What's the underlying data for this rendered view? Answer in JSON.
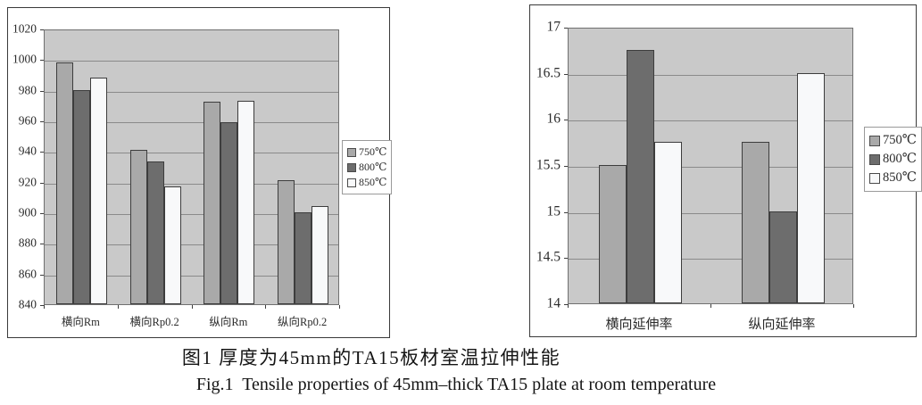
{
  "figure": {
    "caption_zh": "图1 厚度为45mm的TA15板材室温拉伸性能",
    "caption_en": "Fig.1  Tensile properties of 45mm–thick TA15 plate at room temperature"
  },
  "colors": {
    "series_750": "#a9a9a9",
    "series_800": "#6d6d6d",
    "series_850": "#f8f9fa",
    "plot_bg": "#c9c9c9",
    "gridline": "#8a8a8a",
    "bar_border": "#3d3d3d",
    "frame_border": "#3a3a3a"
  },
  "chart_data": [
    {
      "type": "bar",
      "title": "",
      "xlabel": "",
      "ylabel": "",
      "categories": [
        "横向Rm",
        "横向Rp0.2",
        "纵向Rm",
        "纵向Rp0.2"
      ],
      "series": [
        {
          "name": "750℃",
          "color": "#a9a9a9",
          "values": [
            998,
            941,
            972,
            921
          ]
        },
        {
          "name": "800℃",
          "color": "#6d6d6d",
          "values": [
            980,
            933,
            959,
            900
          ]
        },
        {
          "name": "850℃",
          "color": "#f8f9fa",
          "values": [
            988,
            917,
            973,
            904
          ]
        }
      ],
      "ylim": [
        840,
        1020
      ],
      "ytick_step": 20,
      "grid": true,
      "legend_position": "right",
      "plot_bg": "#c9c9c9"
    },
    {
      "type": "bar",
      "title": "",
      "xlabel": "",
      "ylabel": "",
      "categories": [
        "横向延伸率",
        "纵向延伸率"
      ],
      "series": [
        {
          "name": "750℃",
          "color": "#a9a9a9",
          "values": [
            15.5,
            15.75
          ]
        },
        {
          "name": "800℃",
          "color": "#6d6d6d",
          "values": [
            16.75,
            15
          ]
        },
        {
          "name": "850℃",
          "color": "#f8f9fa",
          "values": [
            15.75,
            16.5
          ]
        }
      ],
      "ylim": [
        14,
        17
      ],
      "ytick_step": 0.5,
      "grid": true,
      "legend_position": "right",
      "plot_bg": "#c9c9c9"
    }
  ]
}
